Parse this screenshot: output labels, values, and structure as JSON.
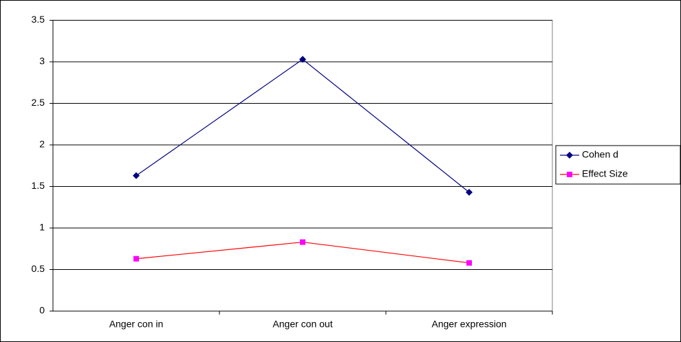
{
  "chart_data": {
    "type": "line",
    "categories": [
      "Anger con in",
      "Anger con out",
      "Anger expression"
    ],
    "series": [
      {
        "name": "Cohen d",
        "color": "#000080",
        "marker": "diamond",
        "values": [
          1.63,
          3.03,
          1.43
        ]
      },
      {
        "name": "Effect Size",
        "color": "#ff0000",
        "marker_color": "#ff00ff",
        "marker": "square",
        "values": [
          0.63,
          0.83,
          0.58
        ]
      }
    ],
    "ylim": [
      0,
      3.5
    ],
    "yticks": [
      0,
      0.5,
      1,
      1.5,
      2,
      2.5,
      3,
      3.5
    ],
    "grid": true,
    "legend": "right"
  }
}
